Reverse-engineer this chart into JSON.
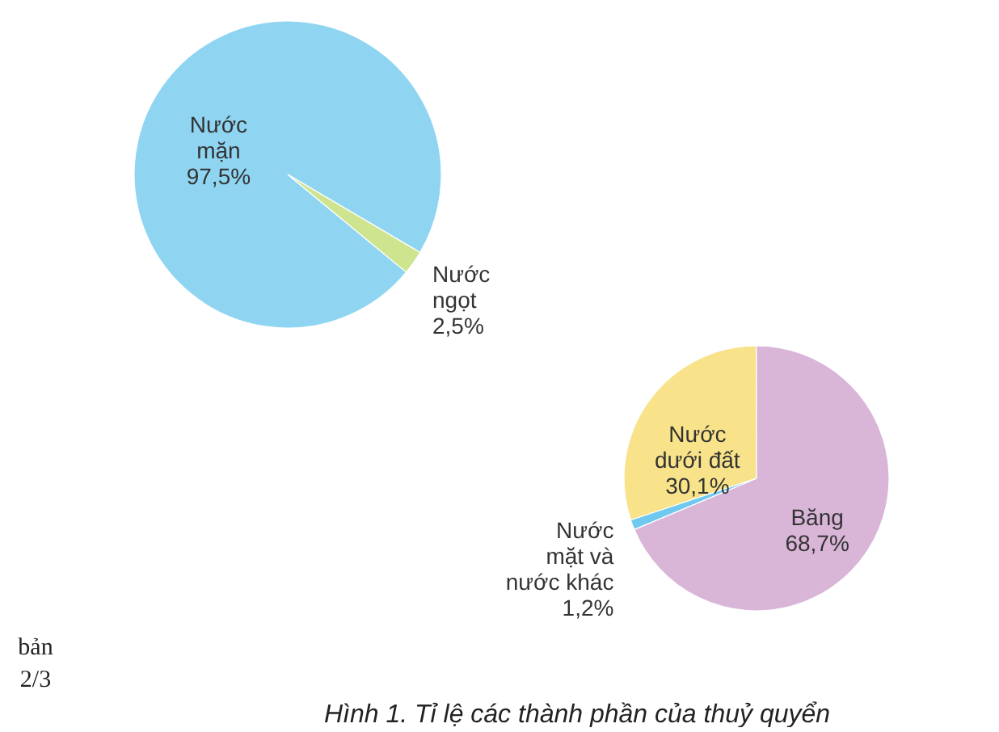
{
  "chart_data": [
    {
      "type": "pie",
      "title": "Hình 1. Tỉ lệ các thành phần của thuỷ quyển",
      "categories": [
        "Nước mặn",
        "Nước ngọt"
      ],
      "values": [
        97.5,
        2.5
      ],
      "value_labels": [
        "97,5%",
        "2,5%"
      ],
      "colors": [
        "#8fd5f2",
        "#cfe48f"
      ],
      "annotations": [
        "bản 2/3"
      ]
    },
    {
      "type": "pie",
      "categories": [
        "Nước dưới đất",
        "Băng",
        "Nước mặt và nước khác"
      ],
      "values": [
        30.1,
        68.7,
        1.2
      ],
      "value_labels": [
        "30,1%",
        "68,7%",
        "1,2%"
      ],
      "colors": [
        "#f8e38a",
        "#d9b5d8",
        "#6fc8ef"
      ]
    }
  ]
}
